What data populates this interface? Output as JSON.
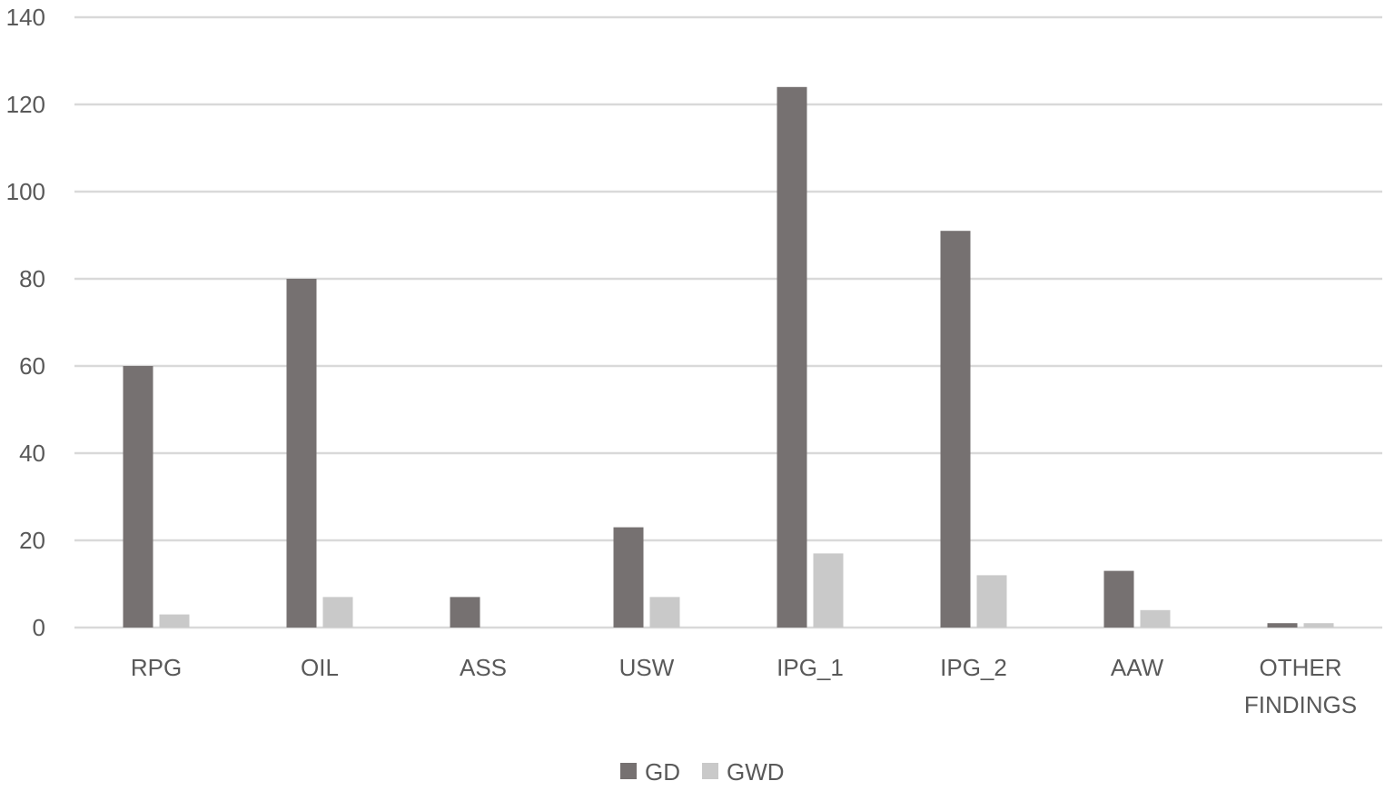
{
  "chart_data": {
    "type": "bar",
    "title": "",
    "xlabel": "",
    "ylabel": "",
    "ylim": [
      0,
      140
    ],
    "yticks": [
      0,
      20,
      40,
      60,
      80,
      100,
      120,
      140
    ],
    "grid": true,
    "legend_position": "bottom",
    "categories": [
      [
        "RPG"
      ],
      [
        "OIL"
      ],
      [
        "ASS"
      ],
      [
        "USW"
      ],
      [
        "IPG_1"
      ],
      [
        "IPG_2"
      ],
      [
        "AAW"
      ],
      [
        "OTHER",
        "FINDINGS"
      ]
    ],
    "series": [
      {
        "name": "GD",
        "color": "#767171",
        "values": [
          60,
          80,
          7,
          23,
          124,
          91,
          13,
          1
        ]
      },
      {
        "name": "GWD",
        "color": "#c9c9c9",
        "values": [
          3,
          7,
          0,
          7,
          17,
          12,
          4,
          1
        ]
      }
    ],
    "gridline_color": "#d9d9d9",
    "text_color": "#595959"
  }
}
